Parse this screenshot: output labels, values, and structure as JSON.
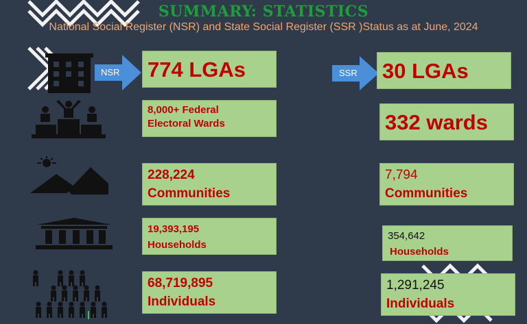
{
  "title": "SUMMARY: STATISTICS",
  "subtitle": "National Social Register (NSR) and State Social Register (SSR )Status as at June, 2024",
  "nsr": {
    "arrow_label": "NSR",
    "lgas": "774 LGAs",
    "wards_line1": "8,000+ Federal",
    "wards_line2": "Electoral Wards",
    "communities_value": "228,224",
    "communities_label": "Communities",
    "households_value": "19,393,195",
    "households_label": "Households",
    "individuals_value": "68,719,895",
    "individuals_label": "Individuals"
  },
  "ssr": {
    "arrow_label": "SSR",
    "lgas": "30 LGAs",
    "wards": "332 wards",
    "communities_value": "7,794",
    "communities_label": "Communities",
    "households_value": "354,642",
    "households_label": "Households",
    "individuals_value": "1,291,245",
    "individuals_label": "Individuals"
  },
  "icons": [
    "building-icon",
    "podium-icon",
    "landscape-sun-icon",
    "government-building-icon",
    "population-icon"
  ],
  "colors": {
    "background": "#2f3a4b",
    "box": "#a9d18e",
    "value_red": "#c00000",
    "title_green": "#1e9e3a",
    "subtitle_orange": "#f0a66c",
    "arrow_blue": "#4a8fd8"
  }
}
